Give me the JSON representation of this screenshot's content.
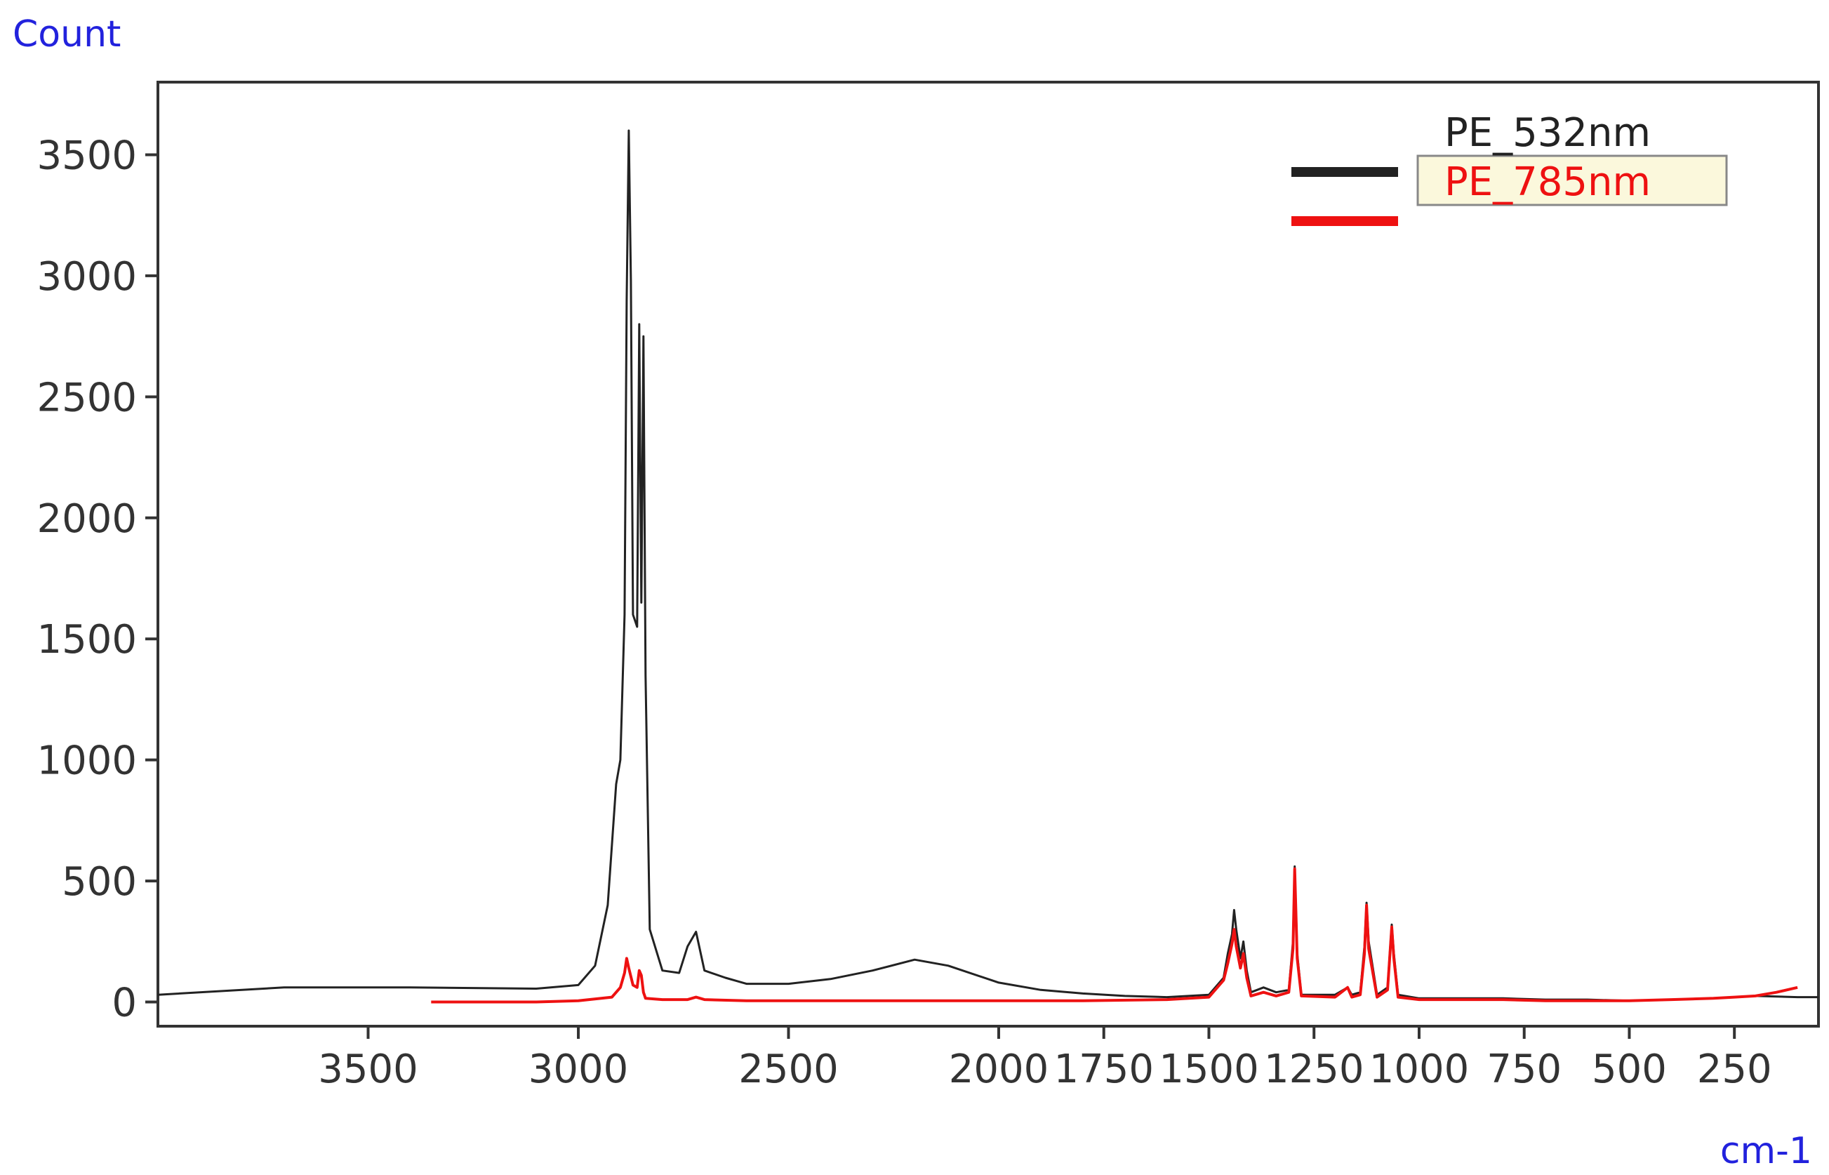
{
  "chart_data": {
    "type": "line",
    "ylabel": "Count",
    "xlabel": "cm-1",
    "x_reversed": true,
    "xlim": [
      4000,
      50
    ],
    "ylim": [
      -100,
      3800
    ],
    "x_ticks": [
      3500,
      3000,
      2500,
      2000,
      1750,
      1500,
      1250,
      1000,
      750,
      500,
      250
    ],
    "x_tick_labels": [
      "3500",
      "3000",
      "2500",
      "2000",
      "1750",
      "1500",
      "1250",
      "1000",
      "750",
      "500",
      "250"
    ],
    "y_ticks": [
      0,
      500,
      1000,
      1500,
      2000,
      2500,
      3000,
      3500
    ],
    "y_tick_labels": [
      "0",
      "500",
      "1000",
      "1500",
      "2000",
      "2500",
      "3000",
      "3500"
    ],
    "grid": false,
    "legend_position": "top-right",
    "series": [
      {
        "name": "PE_532nm",
        "color": "#222222",
        "x": [
          4000,
          3700,
          3400,
          3100,
          3000,
          2960,
          2930,
          2910,
          2900,
          2890,
          2885,
          2880,
          2875,
          2870,
          2860,
          2855,
          2850,
          2845,
          2840,
          2830,
          2800,
          2760,
          2740,
          2720,
          2700,
          2650,
          2600,
          2500,
          2400,
          2300,
          2200,
          2120,
          2000,
          1900,
          1800,
          1700,
          1600,
          1500,
          1465,
          1455,
          1445,
          1440,
          1435,
          1425,
          1418,
          1410,
          1400,
          1370,
          1340,
          1310,
          1300,
          1296,
          1290,
          1280,
          1200,
          1170,
          1160,
          1140,
          1130,
          1125,
          1120,
          1100,
          1075,
          1065,
          1060,
          1050,
          1000,
          900,
          800,
          700,
          600,
          500,
          400,
          300,
          200,
          100,
          50
        ],
        "y": [
          30,
          60,
          60,
          55,
          70,
          150,
          400,
          900,
          1000,
          1600,
          2900,
          3600,
          2980,
          1600,
          1550,
          2800,
          1650,
          2750,
          1350,
          300,
          130,
          120,
          230,
          290,
          130,
          100,
          75,
          75,
          95,
          130,
          175,
          150,
          80,
          50,
          35,
          25,
          20,
          30,
          100,
          200,
          280,
          380,
          300,
          180,
          250,
          130,
          40,
          60,
          40,
          50,
          250,
          560,
          200,
          30,
          30,
          60,
          30,
          40,
          230,
          410,
          250,
          30,
          60,
          320,
          200,
          30,
          15,
          15,
          15,
          10,
          10,
          5,
          10,
          15,
          25,
          20,
          20
        ]
      },
      {
        "name": "PE_785nm",
        "color": "#ee1111",
        "x": [
          3350,
          3100,
          3000,
          2920,
          2900,
          2890,
          2885,
          2880,
          2870,
          2860,
          2855,
          2850,
          2845,
          2840,
          2800,
          2740,
          2720,
          2700,
          2600,
          2400,
          2200,
          2000,
          1800,
          1600,
          1500,
          1465,
          1455,
          1445,
          1440,
          1435,
          1425,
          1418,
          1410,
          1400,
          1370,
          1340,
          1310,
          1300,
          1296,
          1290,
          1280,
          1200,
          1170,
          1160,
          1140,
          1130,
          1125,
          1120,
          1100,
          1075,
          1065,
          1060,
          1050,
          1000,
          900,
          800,
          700,
          600,
          500,
          400,
          300,
          250,
          200,
          150,
          100
        ],
        "y": [
          0,
          0,
          5,
          20,
          60,
          120,
          180,
          140,
          70,
          60,
          130,
          110,
          40,
          15,
          10,
          10,
          20,
          10,
          5,
          5,
          5,
          5,
          5,
          10,
          20,
          90,
          160,
          240,
          300,
          230,
          140,
          200,
          100,
          25,
          40,
          25,
          40,
          220,
          550,
          180,
          25,
          20,
          60,
          20,
          30,
          200,
          400,
          220,
          20,
          50,
          310,
          180,
          20,
          10,
          10,
          10,
          5,
          5,
          5,
          10,
          15,
          20,
          25,
          40,
          60
        ]
      }
    ]
  }
}
